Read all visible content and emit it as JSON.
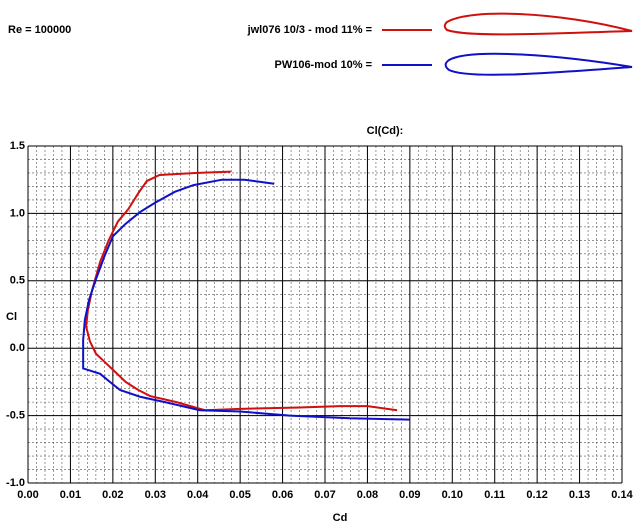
{
  "chart_data": {
    "type": "line",
    "header": "Re = 100000",
    "title": "Cl(Cd):",
    "x_label": "Cd",
    "y_label": "Cl",
    "xlim": [
      0,
      0.14
    ],
    "ylim": [
      -1.0,
      1.5
    ],
    "xticks": [
      {
        "value": 0,
        "label": "0.00"
      },
      {
        "value": 0.01,
        "label": "0.01"
      },
      {
        "value": 0.02,
        "label": "0.02"
      },
      {
        "value": 0.03,
        "label": "0.03"
      },
      {
        "value": 0.04,
        "label": "0.04"
      },
      {
        "value": 0.05,
        "label": "0.05"
      },
      {
        "value": 0.06,
        "label": "0.06"
      },
      {
        "value": 0.07,
        "label": "0.07"
      },
      {
        "value": 0.08,
        "label": "0.08"
      },
      {
        "value": 0.09,
        "label": "0.09"
      },
      {
        "value": 0.1,
        "label": "0.10"
      },
      {
        "value": 0.11,
        "label": "0.11"
      },
      {
        "value": 0.12,
        "label": "0.12"
      },
      {
        "value": 0.13,
        "label": "0.13"
      },
      {
        "value": 0.14,
        "label": "0.14"
      }
    ],
    "yticks": [
      1.5,
      {
        "value": 1.0,
        "label": "1.0"
      },
      0.5,
      {
        "value": 0.0,
        "label": "0.0"
      },
      -0.5,
      {
        "value": -1.0,
        "label": "-1.0"
      }
    ],
    "grid": true,
    "minor_grid": true,
    "series": [
      {
        "name": "jwl076 10/3  - mod 11% =",
        "color": "#d01010",
        "x": [
          0.0478,
          0.0394,
          0.031,
          0.028,
          0.026,
          0.0236,
          0.0212,
          0.019,
          0.017,
          0.0151,
          0.0141,
          0.0137,
          0.0146,
          0.016,
          0.018,
          0.0207,
          0.023,
          0.026,
          0.0288,
          0.035,
          0.0417,
          0.05,
          0.064,
          0.0735,
          0.08,
          0.087
        ],
        "values": [
          1.31,
          1.3,
          1.285,
          1.24,
          1.15,
          1.03,
          0.94,
          0.8,
          0.64,
          0.43,
          0.28,
          0.16,
          0.05,
          -0.04,
          -0.1,
          -0.18,
          -0.25,
          -0.31,
          -0.355,
          -0.4,
          -0.46,
          -0.45,
          -0.44,
          -0.43,
          -0.43,
          -0.46
        ]
      },
      {
        "name": "PW106-mod 10% =",
        "color": "#1010c8",
        "x": [
          0.058,
          0.051,
          0.0457,
          0.039,
          0.0346,
          0.03,
          0.0264,
          0.0229,
          0.02,
          0.018,
          0.016,
          0.0144,
          0.0134,
          0.013,
          0.013,
          0.017,
          0.0193,
          0.0217,
          0.0264,
          0.0323,
          0.0405,
          0.05,
          0.0617,
          0.0759,
          0.09
        ],
        "values": [
          1.22,
          1.25,
          1.25,
          1.21,
          1.16,
          1.08,
          1.01,
          0.92,
          0.83,
          0.68,
          0.51,
          0.36,
          0.21,
          0.06,
          -0.15,
          -0.19,
          -0.25,
          -0.31,
          -0.36,
          -0.4,
          -0.46,
          -0.47,
          -0.5,
          -0.52,
          -0.53
        ]
      }
    ]
  }
}
